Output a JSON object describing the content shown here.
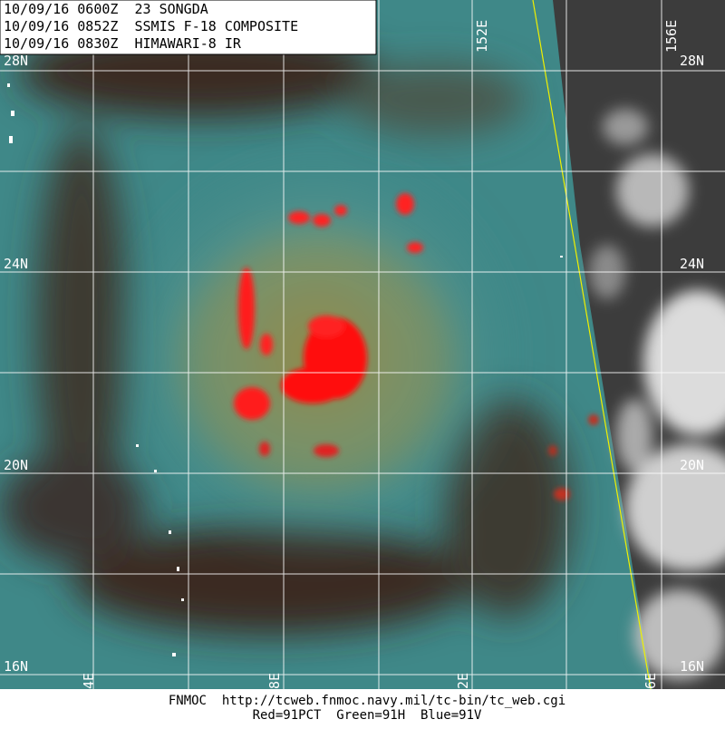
{
  "header": {
    "lines": [
      "10/09/16 0600Z  23 SONGDA",
      "10/09/16 0852Z  SSMIS F-18 COMPOSITE",
      "10/09/16 0830Z  HIMAWARI-8 IR"
    ]
  },
  "map": {
    "lat_labels": [
      "28N",
      "24N",
      "20N",
      "16N"
    ],
    "lon_labels_top": [
      "152E",
      "156E"
    ],
    "lon_labels_bottom": [
      "4E",
      "8E",
      "2E",
      "6E"
    ]
  },
  "footer": {
    "lines": [
      "FNMOC  http://tcweb.fnmoc.navy.mil/tc-bin/tc_web.cgi",
      "Red=91PCT  Green=91H  Blue=91V"
    ]
  }
}
